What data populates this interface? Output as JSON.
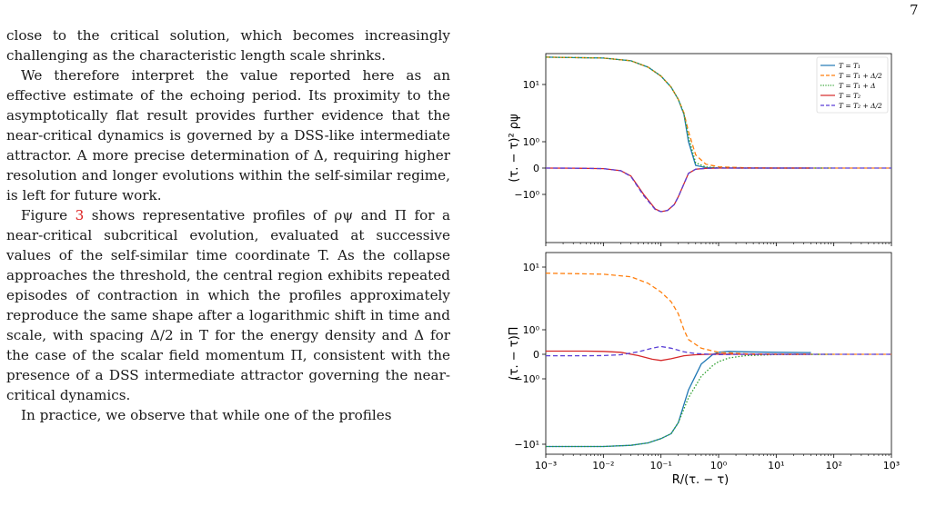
{
  "page_number": "7",
  "paragraphs": [
    "close to the critical solution, which becomes increasingly challenging as the characteristic length scale shrinks.",
    "We therefore interpret the value reported here as an effective estimate of the echoing period. Its proximity to the asymptotically flat result provides further evidence that the near-critical dynamics is governed by a DSS-like intermediate attractor. A more precise determination of Δ, requiring higher resolution and longer evolutions within the self-similar regime, is left for future work.",
    "shows representative profiles of ρψ and Π for a near-critical subcritical evolution, evaluated at successive values of the self-similar time coordinate T. As the collapse approaches the threshold, the central region exhibits repeated episodes of contraction in which the profiles approximately reproduce the same shape after a logarithmic shift in time and scale, with spacing Δ/2 in T for the energy density and Δ for the case of the scalar field momentum Π, consistent with the presence of a DSS intermediate attractor governing the near-critical dynamics.",
    "In practice, we observe that while one of the profiles"
  ],
  "figure_ref": {
    "prefix": "Figure",
    "number": "3"
  },
  "chart_data": [
    {
      "type": "line",
      "panel": "top",
      "ylabel": "(τ. − τ)² ρψ",
      "xscale": "log",
      "yscale": "symlog",
      "xlim": [
        0.001,
        1000
      ],
      "yticks": [
        "10¹",
        "10⁰",
        "0",
        "−10⁰"
      ],
      "legend": {
        "placement": "top-right",
        "entries": [
          "T = T₁",
          "T = T₁ + Δ/2",
          "T = T₁ + Δ",
          "T = T₂",
          "T = T₂ + Δ/2"
        ]
      },
      "series": [
        {
          "name": "T = T₁",
          "color": "#1f77b4",
          "style": "solid",
          "x": [
            0.001,
            0.01,
            0.03,
            0.06,
            0.1,
            0.15,
            0.2,
            0.25,
            0.3,
            0.4,
            0.6,
            1,
            3,
            10,
            40
          ],
          "y": [
            30,
            29,
            26,
            20,
            14,
            9,
            5.5,
            3,
            1,
            0.1,
            0.02,
            0.005,
            0,
            0,
            0
          ]
        },
        {
          "name": "T = T₁ + Δ/2",
          "color": "#ff7f0e",
          "style": "dashed",
          "x": [
            0.001,
            0.01,
            0.03,
            0.06,
            0.1,
            0.15,
            0.2,
            0.25,
            0.3,
            0.4,
            0.6,
            1,
            3,
            10,
            100,
            1000
          ],
          "y": [
            30,
            29,
            26,
            20,
            14,
            9,
            5.5,
            3.2,
            1.5,
            0.5,
            0.15,
            0.05,
            0.01,
            0,
            0,
            0
          ]
        },
        {
          "name": "T = T₁ + Δ",
          "color": "#2ca02c",
          "style": "dotted",
          "x": [
            0.001,
            0.01,
            0.03,
            0.06,
            0.1,
            0.15,
            0.2,
            0.25,
            0.3,
            0.4,
            0.6,
            1,
            3,
            10,
            100
          ],
          "y": [
            30,
            29,
            26,
            20,
            14,
            9,
            5.5,
            3.1,
            1.2,
            0.2,
            0.04,
            0.01,
            0,
            0,
            0
          ]
        },
        {
          "name": "T = T₂",
          "color": "#d62728",
          "style": "solid",
          "x": [
            0.001,
            0.003,
            0.01,
            0.02,
            0.03,
            0.05,
            0.08,
            0.1,
            0.13,
            0.17,
            0.2,
            0.25,
            0.3,
            0.4,
            0.6,
            1,
            3,
            10,
            40
          ],
          "y": [
            0,
            -0.003,
            -0.02,
            -0.1,
            -0.3,
            -1,
            -1.8,
            -2,
            -1.9,
            -1.5,
            -1.1,
            -0.6,
            -0.2,
            -0.04,
            -0.01,
            0,
            0,
            0,
            0
          ]
        },
        {
          "name": "T = T₂ + Δ/2",
          "color": "#5a3fd6",
          "style": "dashed",
          "x": [
            0.001,
            0.003,
            0.01,
            0.02,
            0.03,
            0.05,
            0.08,
            0.1,
            0.13,
            0.17,
            0.2,
            0.25,
            0.3,
            0.4,
            0.6,
            1,
            3,
            10,
            100,
            1000
          ],
          "y": [
            0,
            -0.003,
            -0.02,
            -0.1,
            -0.32,
            -1.05,
            -1.85,
            -2,
            -1.9,
            -1.5,
            -1.1,
            -0.6,
            -0.2,
            -0.04,
            -0.01,
            0,
            0,
            0,
            0,
            0
          ]
        }
      ]
    },
    {
      "type": "line",
      "panel": "bottom",
      "ylabel": "(τ. − τ)Π",
      "xlabel": "R/(τ. − τ)",
      "xscale": "log",
      "yscale": "symlog",
      "xlim": [
        0.001,
        1000
      ],
      "xticks": [
        "10⁻³",
        "10⁻²",
        "10⁻¹",
        "10⁰",
        "10¹",
        "10²",
        "10³"
      ],
      "yticks": [
        "10¹",
        "10⁰",
        "0",
        "−10⁰",
        "−10¹"
      ],
      "series": [
        {
          "name": "T = T₁",
          "color": "#1f77b4",
          "style": "solid",
          "x": [
            0.001,
            0.01,
            0.03,
            0.06,
            0.1,
            0.15,
            0.2,
            0.3,
            0.5,
            0.8,
            1,
            1.5,
            3,
            10,
            40
          ],
          "y": [
            -12,
            -12,
            -11.5,
            -10.5,
            -9,
            -7.5,
            -5,
            -1.5,
            -0.4,
            0,
            0.08,
            0.12,
            0.1,
            0.08,
            0.07
          ]
        },
        {
          "name": "T = T₁ + Δ/2",
          "color": "#ff7f0e",
          "style": "dashed",
          "x": [
            0.001,
            0.01,
            0.03,
            0.06,
            0.1,
            0.15,
            0.2,
            0.25,
            0.3,
            0.5,
            1,
            3,
            10,
            100,
            1000
          ],
          "y": [
            8,
            7.7,
            7,
            5.5,
            4,
            2.8,
            1.8,
            1,
            0.6,
            0.25,
            0.08,
            0.02,
            0.005,
            0,
            0
          ]
        },
        {
          "name": "T = T₁ + Δ",
          "color": "#2ca02c",
          "style": "dotted",
          "x": [
            0.001,
            0.01,
            0.03,
            0.06,
            0.1,
            0.15,
            0.2,
            0.3,
            0.5,
            0.8,
            1,
            1.5,
            3,
            10,
            100
          ],
          "y": [
            -12,
            -12,
            -11.5,
            -10.5,
            -9,
            -7.5,
            -5,
            -2,
            -0.9,
            -0.45,
            -0.3,
            -0.15,
            -0.05,
            -0.01,
            0
          ]
        },
        {
          "name": "T = T₂",
          "color": "#d62728",
          "style": "solid",
          "x": [
            0.001,
            0.005,
            0.01,
            0.02,
            0.04,
            0.07,
            0.1,
            0.15,
            0.25,
            0.4,
            0.7,
            1,
            3,
            10,
            40
          ],
          "y": [
            0.13,
            0.13,
            0.12,
            0.08,
            -0.05,
            -0.2,
            -0.25,
            -0.18,
            -0.06,
            -0.02,
            0,
            0.01,
            0,
            0,
            0
          ]
        },
        {
          "name": "T = T₂ + Δ/2",
          "color": "#5a3fd6",
          "style": "dashed",
          "x": [
            0.001,
            0.005,
            0.01,
            0.02,
            0.04,
            0.07,
            0.1,
            0.15,
            0.25,
            0.4,
            0.7,
            1,
            3,
            10,
            100,
            1000
          ],
          "y": [
            -0.06,
            -0.06,
            -0.05,
            -0.02,
            0.1,
            0.25,
            0.32,
            0.25,
            0.1,
            0.03,
            0,
            -0.01,
            0,
            0,
            0,
            0
          ]
        }
      ]
    }
  ]
}
